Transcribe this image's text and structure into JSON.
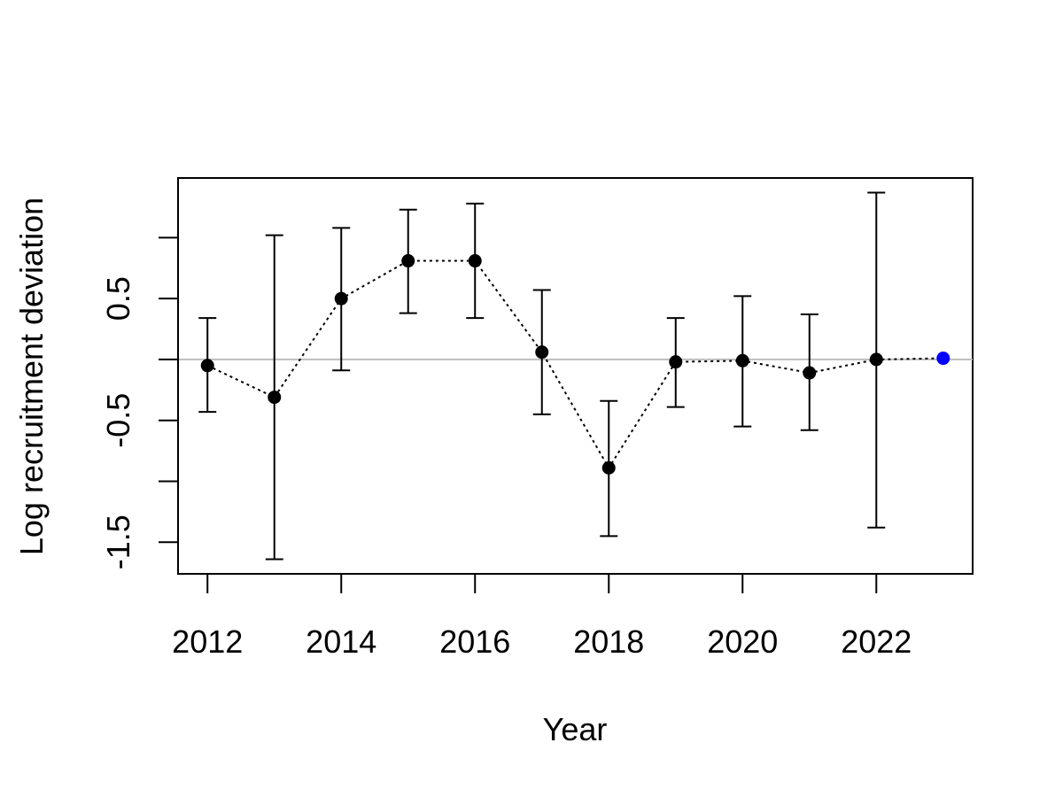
{
  "chart_data": {
    "type": "scatter",
    "title": "",
    "xlabel": "Year",
    "ylabel": "Log recruitment deviation",
    "xlim": [
      2011.56,
      2023.44
    ],
    "ylim": [
      -1.76,
      1.49
    ],
    "x_ticks": [
      2012,
      2014,
      2016,
      2018,
      2020,
      2022
    ],
    "x_tick_labels": [
      "2012",
      "2014",
      "2016",
      "2018",
      "2020",
      "2022"
    ],
    "y_ticks": [
      -1.5,
      -1,
      -0.5,
      0,
      0.5,
      1
    ],
    "y_tick_labels": [
      "-1.5",
      "",
      "-0.5",
      "",
      "0.5",
      ""
    ],
    "reference_line": {
      "y": 0,
      "color": "#bebebe"
    },
    "series": [
      {
        "line_style": "dotted",
        "color": "#000000",
        "points": [
          {
            "x": 2012,
            "y": -0.05,
            "lower": -0.43,
            "upper": 0.34
          },
          {
            "x": 2013,
            "y": -0.31,
            "lower": -1.64,
            "upper": 1.02
          },
          {
            "x": 2014,
            "y": 0.5,
            "lower": -0.09,
            "upper": 1.08
          },
          {
            "x": 2015,
            "y": 0.81,
            "lower": 0.38,
            "upper": 1.23
          },
          {
            "x": 2016,
            "y": 0.81,
            "lower": 0.34,
            "upper": 1.28
          },
          {
            "x": 2017,
            "y": 0.06,
            "lower": -0.45,
            "upper": 0.57
          },
          {
            "x": 2018,
            "y": -0.89,
            "lower": -1.45,
            "upper": -0.34
          },
          {
            "x": 2019,
            "y": -0.02,
            "lower": -0.39,
            "upper": 0.34
          },
          {
            "x": 2020,
            "y": -0.01,
            "lower": -0.55,
            "upper": 0.52
          },
          {
            "x": 2021,
            "y": -0.11,
            "lower": -0.58,
            "upper": 0.37
          },
          {
            "x": 2022,
            "y": 0.0,
            "lower": -1.38,
            "upper": 1.37
          },
          {
            "x": 2023,
            "y": 0.01,
            "color": "#0000ff"
          }
        ]
      }
    ],
    "grid": false,
    "legend": "none"
  }
}
